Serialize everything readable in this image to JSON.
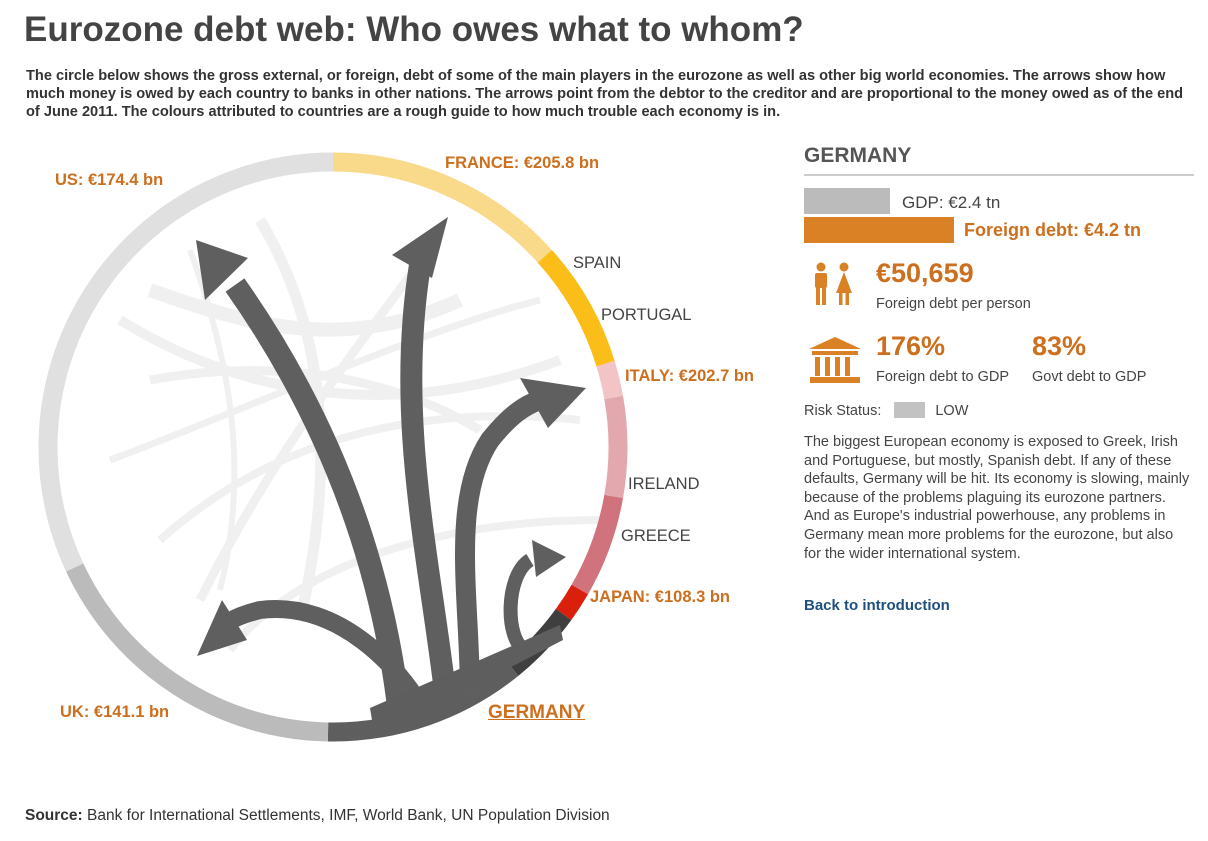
{
  "title": "Eurozone debt web: Who owes what to whom?",
  "intro": "The circle below shows the gross external, or foreign, debt of some of the main players in the eurozone as well as other big world economies. The arrows show how much money is owed by each country to banks in other nations. The arrows point from the debtor to the creditor and are proportional to the money owed as of the end of June 2011. The colours attributed to countries are a rough guide to how much trouble each economy is in.",
  "circle": {
    "labels": {
      "us": "US: €174.4 bn",
      "france": "FRANCE: €205.8 bn",
      "spain": "SPAIN",
      "portugal": "PORTUGAL",
      "italy": "ITALY: €202.7 bn",
      "ireland": "IRELAND",
      "greece": "GREECE",
      "japan": "JAPAN: €108.3 bn",
      "uk": "UK: €141.1 bn",
      "germany": "GERMANY"
    },
    "colors": {
      "us": "#e0e0e0",
      "france": "#f9d98a",
      "spain": "#fbbd17",
      "portugal": "#f2c4c6",
      "italy": "#e2a8ad",
      "ireland": "#d1737c",
      "greece": "#d9200d",
      "japan": "#3f3f3f",
      "germany": "#5e5e5e",
      "uk": "#bbbbbb",
      "arrow": "#5f5f5f"
    }
  },
  "panel": {
    "country": "GERMANY",
    "gdp_label": "GDP: €2.4 tn",
    "debt_label": "Foreign debt: €4.2 tn",
    "gdp_tn": 2.4,
    "debt_tn": 4.2,
    "gdp_color": "#bbbbbb",
    "debt_color": "#db8125",
    "per_person_value": "€50,659",
    "per_person_label": "Foreign debt per person",
    "ratio_value": "176%",
    "ratio_label": "Foreign debt to GDP",
    "govt_value": "83%",
    "govt_label": "Govt debt to GDP",
    "people_icon": "people-icon",
    "bank_icon": "bank-icon",
    "risk_label": "Risk Status:",
    "risk_value": "LOW",
    "description": "The biggest European economy is exposed to Greek, Irish and Portuguese, but mostly, Spanish debt. If any of these defaults, Germany will be hit. Its economy is slowing, mainly because of the problems plaguing its eurozone partners. And as Europe's industrial powerhouse, any problems in Germany mean more problems for the eurozone, but also for the wider international system.",
    "back_link": "Back to introduction"
  },
  "source": {
    "label": "Source:",
    "text": "Bank for International Settlements, IMF, World Bank, UN Population Division"
  }
}
